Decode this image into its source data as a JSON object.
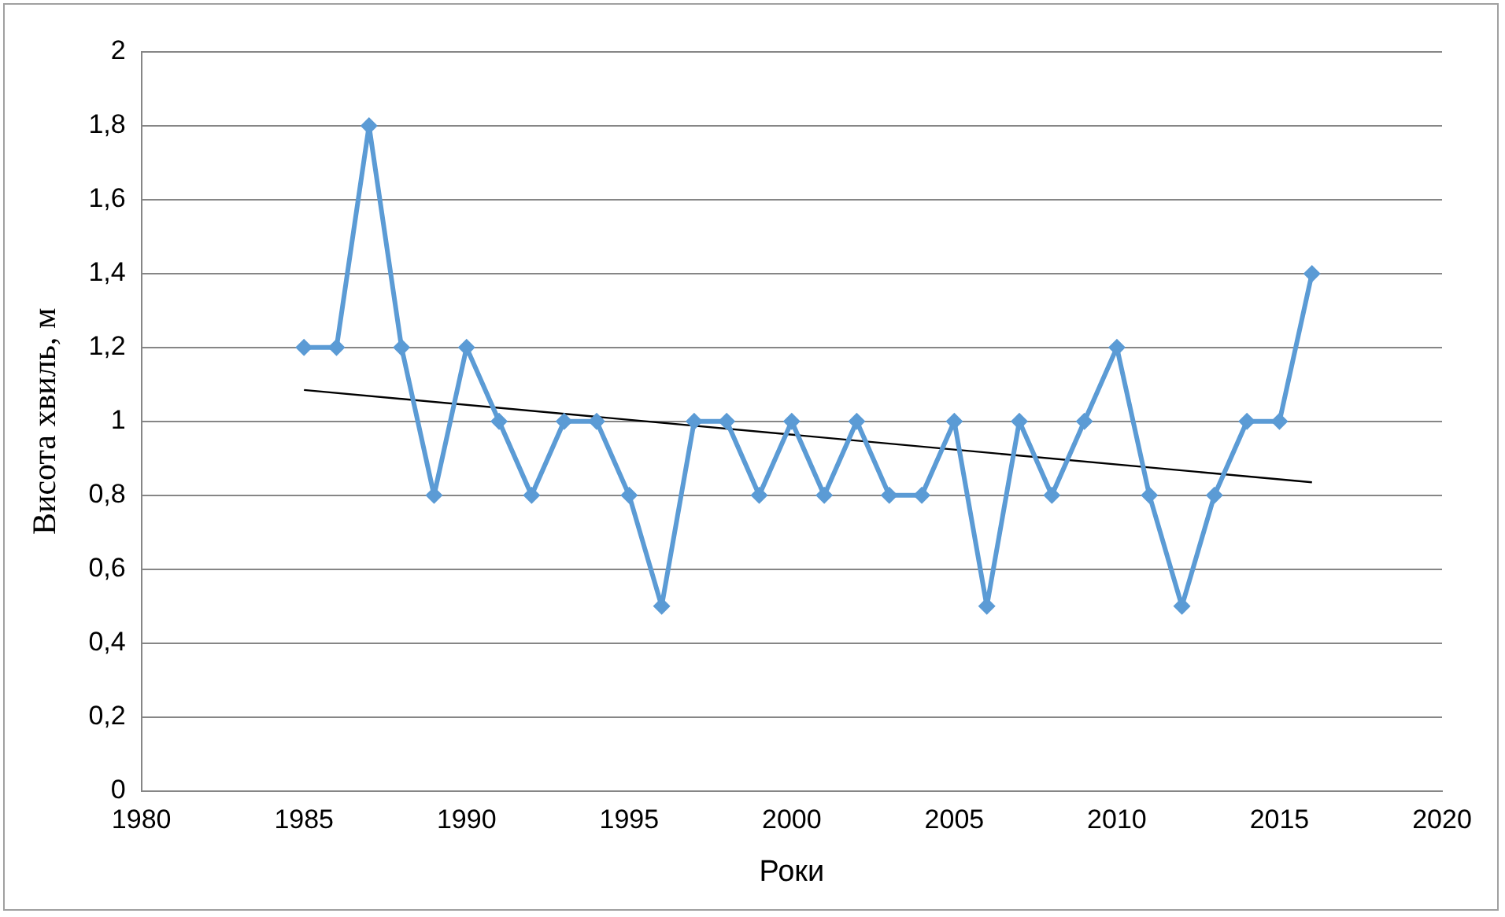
{
  "chart_data": {
    "type": "line",
    "xlabel": "Роки",
    "ylabel": "Висота хвиль, м",
    "x": [
      1985,
      1986,
      1987,
      1988,
      1989,
      1990,
      1991,
      1992,
      1993,
      1994,
      1995,
      1996,
      1997,
      1998,
      1999,
      2000,
      2001,
      2002,
      2003,
      2004,
      2005,
      2006,
      2007,
      2008,
      2009,
      2010,
      2011,
      2012,
      2013,
      2014,
      2015,
      2016
    ],
    "series": [
      {
        "color": "#5b9bd5",
        "marker": "diamond",
        "values": [
          1.2,
          1.2,
          1.8,
          1.2,
          0.8,
          1.2,
          1.0,
          0.8,
          1.0,
          1.0,
          0.8,
          0.5,
          1.0,
          1.0,
          0.8,
          1.0,
          0.8,
          1.0,
          0.8,
          0.8,
          1.0,
          0.5,
          1.0,
          0.8,
          1.0,
          1.2,
          0.8,
          0.5,
          0.8,
          1.0,
          1.0,
          1.4
        ]
      },
      {
        "type": "line",
        "color": "#000000",
        "marker": "none",
        "x": [
          1985,
          2016
        ],
        "values": [
          1.085,
          0.835
        ]
      }
    ],
    "xlim": [
      1980,
      2020
    ],
    "xticks": [
      1980,
      1985,
      1990,
      1995,
      2000,
      2005,
      2010,
      2015,
      2020
    ],
    "ylim": [
      0,
      2
    ],
    "yticks": [
      0,
      {
        "value": 0.2,
        "label": "0,2"
      },
      {
        "value": 0.4,
        "label": "0,4"
      },
      {
        "value": 0.6,
        "label": "0,6"
      },
      {
        "value": 0.8,
        "label": "0,8"
      },
      1,
      {
        "value": 1.2,
        "label": "1,2"
      },
      {
        "value": 1.4,
        "label": "1,4"
      },
      {
        "value": 1.6,
        "label": "1,6"
      },
      {
        "value": 1.8,
        "label": "1,8"
      },
      2
    ],
    "grid": "y",
    "legend": false
  }
}
